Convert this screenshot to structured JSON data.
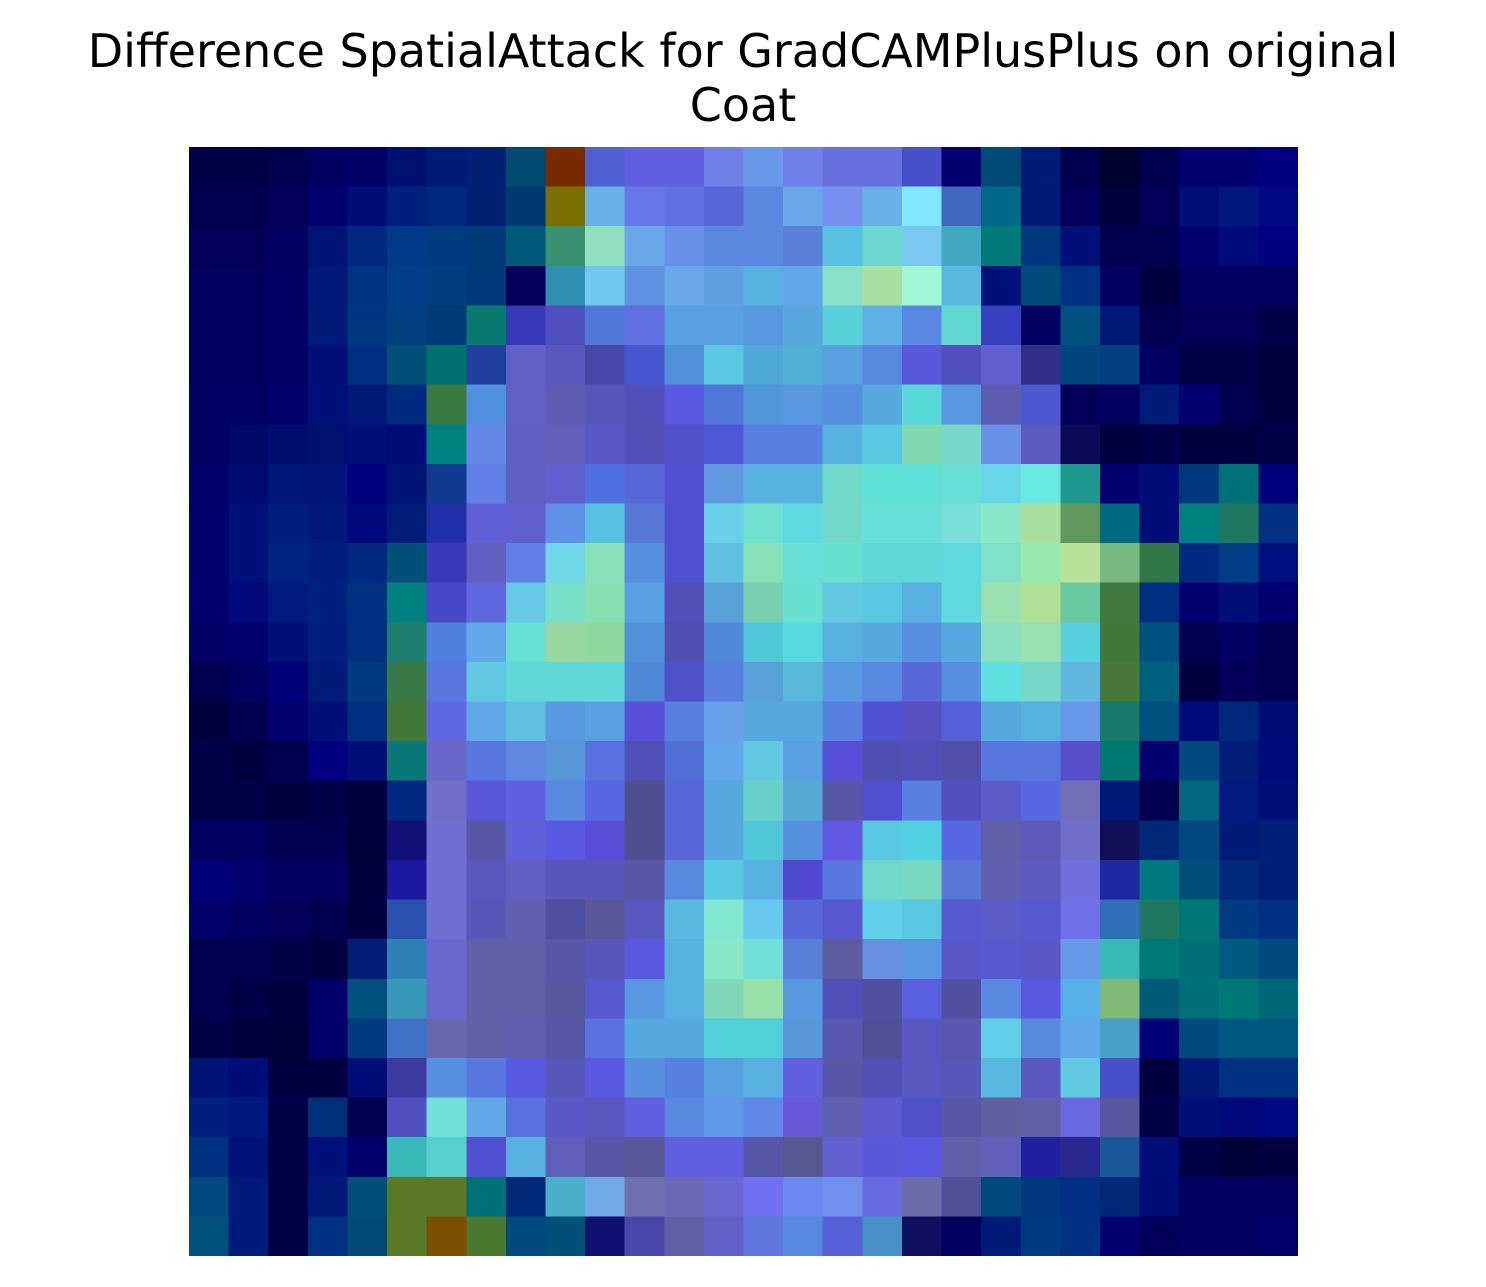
{
  "figure": {
    "title_line1": "Difference SpatialAttack for GradCAMPlusPlus on original",
    "title_line2": "Coat"
  },
  "image": {
    "grid_size": 28,
    "rows": [
      [
        "#00004a",
        "#00004a",
        "#000050",
        "#000060",
        "#000066",
        "#001070",
        "#001a78",
        "#002072",
        "#004a70",
        "#7a2a00",
        "#5060d0",
        "#6060e0",
        "#6060e0",
        "#7080e8",
        "#6a98e8",
        "#7080e8",
        "#6870e0",
        "#6870e0",
        "#4850c8",
        "#000070",
        "#004a78",
        "#001a78",
        "#000050",
        "#000030",
        "#000050",
        "#000070",
        "#000070",
        "#000080"
      ],
      [
        "#000050",
        "#000050",
        "#00005a",
        "#000070",
        "#000c78",
        "#002080",
        "#00287e",
        "#002070",
        "#003a72",
        "#7a7000",
        "#68b0e8",
        "#6878e8",
        "#6070e0",
        "#5868d8",
        "#5a88e0",
        "#68a8e8",
        "#7890f0",
        "#68b0e8",
        "#80e8ff",
        "#4068c0",
        "#006888",
        "#001878",
        "#000058",
        "#000040",
        "#000058",
        "#000e78",
        "#001880",
        "#000a80"
      ],
      [
        "#000058",
        "#000058",
        "#000060",
        "#001478",
        "#002880",
        "#003a88",
        "#003a80",
        "#003a78",
        "#00587a",
        "#389070",
        "#90e0c0",
        "#68a8e8",
        "#6890e8",
        "#5a88e0",
        "#5a88e0",
        "#5a80d8",
        "#58c0e0",
        "#6ad8d0",
        "#78c8f0",
        "#40a8c0",
        "#007a78",
        "#003880",
        "#001078",
        "#000050",
        "#000050",
        "#000070",
        "#000a78",
        "#000080"
      ],
      [
        "#000060",
        "#000060",
        "#000064",
        "#00187a",
        "#003480",
        "#003e88",
        "#003e80",
        "#003a7a",
        "#00005a",
        "#3090b0",
        "#70c8f0",
        "#6090e0",
        "#68a8e8",
        "#5ea0e0",
        "#58b0e0",
        "#60a8e8",
        "#88e0c8",
        "#a8e0a0",
        "#a0f8d8",
        "#58b8e0",
        "#00107a",
        "#004a7a",
        "#003080",
        "#000060",
        "#000040",
        "#000060",
        "#000060",
        "#000060"
      ],
      [
        "#000060",
        "#000060",
        "#000064",
        "#001a7a",
        "#003880",
        "#004080",
        "#003a78",
        "#087a70",
        "#3838b8",
        "#5050c0",
        "#5078d8",
        "#6070e0",
        "#58a0e0",
        "#58a0e0",
        "#5898e0",
        "#58a8e0",
        "#58d0d8",
        "#60b0e8",
        "#5a88e0",
        "#60d8d0",
        "#3840c0",
        "#000060",
        "#005080",
        "#001878",
        "#000050",
        "#000058",
        "#000058",
        "#000048"
      ],
      [
        "#000060",
        "#000060",
        "#000064",
        "#001078",
        "#002e80",
        "#005078",
        "#007070",
        "#2040a0",
        "#6060c8",
        "#5858c0",
        "#4848a8",
        "#4858d0",
        "#5090d8",
        "#58c8e0",
        "#50a8d8",
        "#50b0d8",
        "#58a0e0",
        "#5888e0",
        "#5858d8",
        "#5050c0",
        "#6060d0",
        "#303088",
        "#004480",
        "#004080",
        "#000060",
        "#000048",
        "#000048",
        "#000040"
      ],
      [
        "#000064",
        "#000064",
        "#00006a",
        "#00107a",
        "#001878",
        "#002a80",
        "#3a7a40",
        "#5090e0",
        "#6060c8",
        "#5c5cb0",
        "#5858b8",
        "#5050b8",
        "#5858e0",
        "#5078d8",
        "#5098d8",
        "#5898e0",
        "#5890e0",
        "#58a8e0",
        "#58d8d8",
        "#5898e0",
        "#5c5cb0",
        "#5058d0",
        "#000058",
        "#000060",
        "#001a78",
        "#000070",
        "#000050",
        "#000040"
      ],
      [
        "#000064",
        "#00086a",
        "#000c70",
        "#001070",
        "#001078",
        "#000c78",
        "#008080",
        "#6488e8",
        "#6060c0",
        "#6060b8",
        "#5858c8",
        "#5050b8",
        "#5050c8",
        "#5058d8",
        "#5880e0",
        "#5880e0",
        "#58b0e0",
        "#58c8e0",
        "#80d8b0",
        "#78d8c8",
        "#6890e8",
        "#5c5cc0",
        "#0a0a58",
        "#000040",
        "#000048",
        "#000040",
        "#000040",
        "#000048"
      ],
      [
        "#00006a",
        "#000a70",
        "#001678",
        "#00147a",
        "#00007a",
        "#001478",
        "#103a90",
        "#6080e8",
        "#6060c0",
        "#6060d0",
        "#5070e0",
        "#5868d8",
        "#5050d0",
        "#6098e0",
        "#58b0e0",
        "#58b0e0",
        "#70d8c8",
        "#60e0d8",
        "#60e0d8",
        "#68e0d8",
        "#68d8e8",
        "#68e8e0",
        "#209890",
        "#000070",
        "#000c78",
        "#003880",
        "#007078",
        "#00007a"
      ],
      [
        "#00006e",
        "#00107a",
        "#001e80",
        "#00187a",
        "#00087a",
        "#001e78",
        "#2030a8",
        "#6060d8",
        "#6060d0",
        "#6090e8",
        "#58c0e0",
        "#5878d8",
        "#5050d0",
        "#68d0e8",
        "#70e0d0",
        "#60d8e0",
        "#70d8c8",
        "#68e0d8",
        "#68e0d8",
        "#78e0d8",
        "#88e8c8",
        "#a8e0a0",
        "#609860",
        "#006a80",
        "#000c78",
        "#008080",
        "#207860",
        "#003080"
      ],
      [
        "#00006e",
        "#00107a",
        "#002280",
        "#001e80",
        "#00287e",
        "#005078",
        "#3838b8",
        "#6060c0",
        "#6080e8",
        "#70d8e8",
        "#88e0b8",
        "#5890e0",
        "#5050d0",
        "#60c0e0",
        "#88e0b8",
        "#68e0d8",
        "#68e0d0",
        "#60d8d8",
        "#60d8d8",
        "#60d8e0",
        "#80e0c8",
        "#98e8b0",
        "#b8e098",
        "#78b880",
        "#307848",
        "#002a80",
        "#003e88",
        "#001080"
      ],
      [
        "#000070",
        "#00087a",
        "#001a80",
        "#002080",
        "#003080",
        "#008080",
        "#4848c8",
        "#6068e0",
        "#68c8e8",
        "#78e0c8",
        "#88e0b0",
        "#58a0e0",
        "#5050b8",
        "#58a0d8",
        "#78d0b0",
        "#68e0d0",
        "#60c8e0",
        "#58c8e0",
        "#58b0e0",
        "#60d8e0",
        "#98e0b0",
        "#b0e098",
        "#68c8a0",
        "#407a40",
        "#002e80",
        "#000070",
        "#000e78",
        "#000070"
      ],
      [
        "#000066",
        "#00006e",
        "#001078",
        "#001e80",
        "#003080",
        "#208070",
        "#5080e0",
        "#60a8e8",
        "#68e0d8",
        "#98d8a0",
        "#90d8a0",
        "#5090d8",
        "#5050b0",
        "#5088d8",
        "#50c8d8",
        "#58d8e0",
        "#58b0e0",
        "#58a8e0",
        "#5890e0",
        "#58a8e0",
        "#88e0c0",
        "#98e0b0",
        "#58d0e0",
        "#407a38",
        "#005080",
        "#000050",
        "#000060",
        "#000050"
      ],
      [
        "#000050",
        "#000060",
        "#000078",
        "#001a78",
        "#003a80",
        "#3a7a48",
        "#5878e0",
        "#60c8e0",
        "#60d8d8",
        "#60d8d8",
        "#60d8d8",
        "#5088d8",
        "#5050c8",
        "#5880e0",
        "#58a0d8",
        "#58b8d8",
        "#5898e0",
        "#5888e0",
        "#5868d8",
        "#5890e0",
        "#60e0e0",
        "#78d8c8",
        "#60b8e0",
        "#4a7838",
        "#006080",
        "#000040",
        "#000058",
        "#000050"
      ],
      [
        "#000040",
        "#000050",
        "#000070",
        "#001078",
        "#003080",
        "#407838",
        "#6068e0",
        "#60a8e8",
        "#60c0e0",
        "#5898e0",
        "#58a0e0",
        "#5850d8",
        "#5880e0",
        "#6aa0e8",
        "#58a8e0",
        "#58a8e0",
        "#5880e0",
        "#5050d0",
        "#5850c0",
        "#5860d8",
        "#58a8e0",
        "#58b0e0",
        "#6898e8",
        "#1a7868",
        "#005080",
        "#000a78",
        "#00287a",
        "#000c78"
      ],
      [
        "#000048",
        "#000040",
        "#000050",
        "#000080",
        "#000e78",
        "#0a7878",
        "#6868c8",
        "#5878e0",
        "#6088e0",
        "#5898d8",
        "#5870e0",
        "#5050b8",
        "#5070d8",
        "#60a8e8",
        "#60c8e0",
        "#58a0e0",
        "#5850d8",
        "#5050b0",
        "#5050b8",
        "#5050a8",
        "#5878e0",
        "#5878e0",
        "#5850c8",
        "#007870",
        "#000070",
        "#004880",
        "#001e78",
        "#000a78"
      ],
      [
        "#000048",
        "#000048",
        "#000040",
        "#000048",
        "#000040",
        "#002880",
        "#7070c8",
        "#5858d8",
        "#6060e0",
        "#5888e0",
        "#5868e0",
        "#505090",
        "#5868d8",
        "#58a8e0",
        "#68d0c8",
        "#58a8d8",
        "#5858a8",
        "#5050d0",
        "#5880e0",
        "#5050c0",
        "#5c5cc8",
        "#5868e0",
        "#7070b8",
        "#001878",
        "#000050",
        "#006880",
        "#001a80",
        "#001078"
      ],
      [
        "#000060",
        "#000060",
        "#000050",
        "#000050",
        "#00003a",
        "#101078",
        "#7070d0",
        "#5858a8",
        "#6060d8",
        "#5858e0",
        "#5850d8",
        "#505090",
        "#5868d8",
        "#58a8e0",
        "#50c8d8",
        "#5890e0",
        "#6058e0",
        "#58c8e0",
        "#50d0e0",
        "#5868e0",
        "#6060a8",
        "#5c5cb8",
        "#7070c8",
        "#101058",
        "#002878",
        "#004880",
        "#001a78",
        "#002078"
      ],
      [
        "#000078",
        "#00006e",
        "#000060",
        "#000060",
        "#000040",
        "#1a1aa0",
        "#7070d0",
        "#5858c0",
        "#6060c0",
        "#5858b8",
        "#5858b8",
        "#5858a8",
        "#5888e0",
        "#58c8e0",
        "#58b0e0",
        "#5048d0",
        "#5878e0",
        "#70d8c8",
        "#78d8c0",
        "#5878d8",
        "#6060b0",
        "#5c5cc0",
        "#7070e0",
        "#2028a0",
        "#007a80",
        "#005078",
        "#002a78",
        "#002078"
      ],
      [
        "#00006a",
        "#000060",
        "#000058",
        "#000050",
        "#000040",
        "#2a50b0",
        "#7070d0",
        "#5858b8",
        "#6060b0",
        "#5050a0",
        "#585898",
        "#5858c0",
        "#58b8e0",
        "#80e8d0",
        "#68c8f0",
        "#5868d8",
        "#5858d0",
        "#60d0e8",
        "#58c8e0",
        "#5858d0",
        "#5c5cc8",
        "#5858d0",
        "#7070e8",
        "#3070b8",
        "#207860",
        "#007878",
        "#003a80",
        "#003080"
      ],
      [
        "#000050",
        "#000050",
        "#000048",
        "#000040",
        "#001e78",
        "#3080b8",
        "#6868d0",
        "#6060a8",
        "#6060a8",
        "#5858a8",
        "#5858b8",
        "#5858e0",
        "#58b0e0",
        "#88e8c8",
        "#70e0d8",
        "#5880d8",
        "#5c5ca0",
        "#6890e0",
        "#5898e0",
        "#5858c8",
        "#5858d0",
        "#5858c8",
        "#6898e8",
        "#38b8b8",
        "#007a78",
        "#007078",
        "#005a80",
        "#004a80"
      ],
      [
        "#000050",
        "#000048",
        "#000040",
        "#00006a",
        "#005080",
        "#3898b8",
        "#6868d0",
        "#6060a8",
        "#6060a8",
        "#5858a0",
        "#5858d0",
        "#5898e0",
        "#58b0e0",
        "#80d8b8",
        "#98e0a8",
        "#5898e0",
        "#5050b8",
        "#5050a0",
        "#5860e0",
        "#5050a0",
        "#5888e0",
        "#5858e0",
        "#58b0e8",
        "#80b878",
        "#005a78",
        "#007078",
        "#007878",
        "#006878"
      ],
      [
        "#000048",
        "#00003a",
        "#000038",
        "#00006a",
        "#003a80",
        "#4070c8",
        "#6868b0",
        "#6060a8",
        "#6060b0",
        "#5858a8",
        "#5870e0",
        "#58a8e0",
        "#58a8e0",
        "#50d0d8",
        "#50d0d8",
        "#5898d8",
        "#5858b0",
        "#505098",
        "#5858c0",
        "#5858b0",
        "#60d0e8",
        "#5888e0",
        "#60a8e8",
        "#48a0c8",
        "#000078",
        "#004a80",
        "#005880",
        "#005880"
      ],
      [
        "#001478",
        "#000c78",
        "#000040",
        "#000040",
        "#000c78",
        "#3a3aa0",
        "#5890e0",
        "#5878e0",
        "#5858e0",
        "#5858b8",
        "#5858e0",
        "#5890e0",
        "#5880e0",
        "#58a0e0",
        "#58b0e0",
        "#6060e0",
        "#5858a8",
        "#5050b8",
        "#5858c0",
        "#5858b8",
        "#58b8e0",
        "#5858c0",
        "#60c8e0",
        "#4850c8",
        "#000040",
        "#001878",
        "#003080",
        "#003080"
      ],
      [
        "#002080",
        "#001880",
        "#000048",
        "#003078",
        "#000050",
        "#5050c0",
        "#70e0d8",
        "#60a8e8",
        "#5870e0",
        "#5858c8",
        "#5858c0",
        "#6060e0",
        "#5888e0",
        "#6098e8",
        "#6088e8",
        "#6858d8",
        "#6060b0",
        "#5c5cd0",
        "#5050c8",
        "#5858a8",
        "#6060a0",
        "#6060a8",
        "#6868e0",
        "#5858a0",
        "#000048",
        "#00107a",
        "#00087a",
        "#000a80"
      ],
      [
        "#003080",
        "#00127a",
        "#000048",
        "#00107a",
        "#00006a",
        "#38b8b8",
        "#58d0d0",
        "#5050d0",
        "#58b0e0",
        "#6060b8",
        "#5858a8",
        "#585898",
        "#6060e0",
        "#6060e0",
        "#5858a8",
        "#585890",
        "#6060d0",
        "#5858d8",
        "#5858e0",
        "#6060a8",
        "#6060b8",
        "#2020a0",
        "#282890",
        "#1a5898",
        "#000e78",
        "#000048",
        "#000038",
        "#000040"
      ],
      [
        "#004880",
        "#001a7a",
        "#000048",
        "#001878",
        "#005078",
        "#5a7a28",
        "#5a7a28",
        "#007078",
        "#002878",
        "#48b0c8",
        "#70a8e8",
        "#7070b0",
        "#6a6ab8",
        "#6868d0",
        "#7070f0",
        "#6a88f0",
        "#7090f0",
        "#6a6ae0",
        "#6c6ca8",
        "#505098",
        "#004a80",
        "#003880",
        "#002e80",
        "#002878",
        "#000c78",
        "#000060",
        "#000060",
        "#000060"
      ],
      [
        "#005080",
        "#001a7a",
        "#000048",
        "#003080",
        "#004a78",
        "#5a7a28",
        "#7a5000",
        "#4a7a30",
        "#004a80",
        "#005078",
        "#101070",
        "#4848a8",
        "#6060a8",
        "#6060c8",
        "#6078e0",
        "#5888e0",
        "#5860d8",
        "#4890c8",
        "#101060",
        "#000060",
        "#001a78",
        "#003a80",
        "#003080",
        "#000070",
        "#000058",
        "#000060",
        "#000060",
        "#00006a"
      ]
    ]
  }
}
